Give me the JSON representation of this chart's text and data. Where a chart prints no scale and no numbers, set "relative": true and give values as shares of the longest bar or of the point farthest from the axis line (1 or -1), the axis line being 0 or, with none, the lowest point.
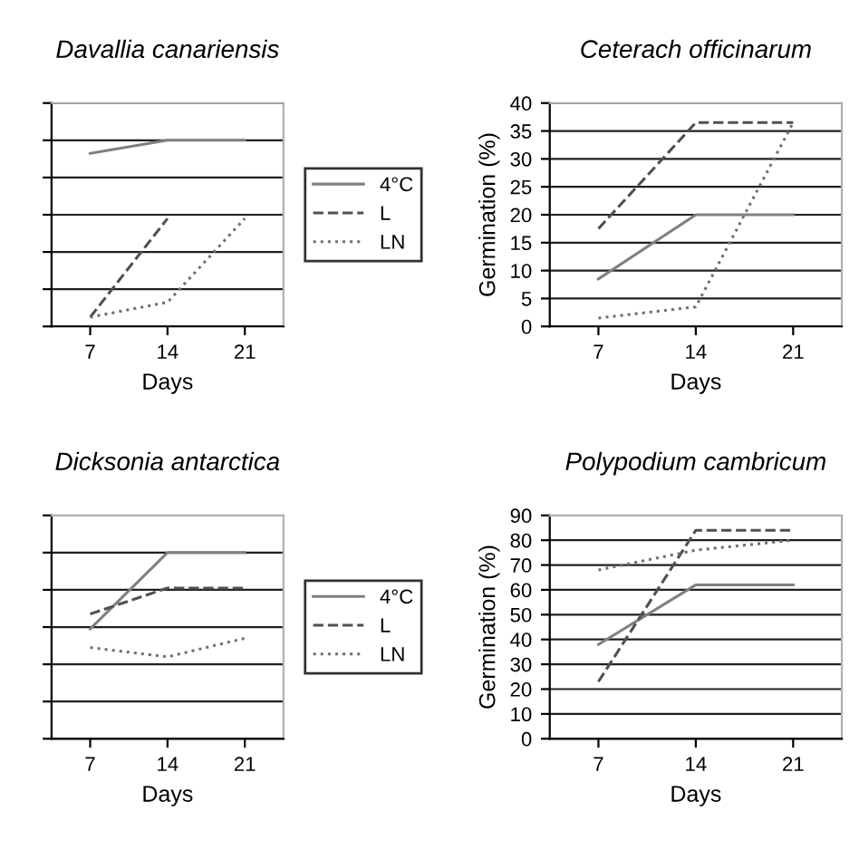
{
  "chart_data": [
    {
      "type": "line",
      "title": "Davallia canariensis",
      "xlabel": "Days",
      "categories": [
        "7",
        "14",
        "21"
      ],
      "relative": true,
      "tick_labels": "x",
      "grid": "y",
      "legend": "right",
      "marker": "none",
      "series": [
        {
          "name": "4°C",
          "color": "#808080",
          "line_style": "solid",
          "values": [
            0.93,
            1,
            1
          ]
        },
        {
          "name": "L",
          "color": "#505050",
          "line_style": "dashed",
          "values": [
            0.05,
            0.58,
            null
          ]
        },
        {
          "name": "LN",
          "color": "#707070",
          "line_style": "dotted",
          "values": [
            0.05,
            0.13,
            0.58
          ]
        }
      ]
    },
    {
      "type": "line",
      "title": "Ceterach officinarum",
      "xlabel": "Days",
      "ylabel": "Germination (%)",
      "categories": [
        "7",
        "14",
        "21"
      ],
      "ylim": [
        0,
        40
      ],
      "yticks": [
        0,
        5,
        10,
        15,
        20,
        25,
        30,
        35,
        40
      ],
      "grid": "y",
      "marker": "none",
      "series": [
        {
          "color": "#808080",
          "line_style": "solid",
          "values": [
            8.5,
            20,
            20
          ]
        },
        {
          "color": "#505050",
          "line_style": "dashed",
          "values": [
            17.5,
            36.5,
            36.5
          ]
        },
        {
          "color": "#707070",
          "line_style": "dotted",
          "values": [
            1.5,
            3.5,
            36.5
          ]
        }
      ]
    },
    {
      "type": "line",
      "title": "Dicksonia antarctica",
      "xlabel": "Days",
      "categories": [
        "7",
        "14",
        "21"
      ],
      "relative": true,
      "tick_labels": "x",
      "grid": "y",
      "legend": "right",
      "marker": "none",
      "series": [
        {
          "name": "4°C",
          "color": "#808080",
          "line_style": "solid",
          "values": [
            0.59,
            1,
            1
          ]
        },
        {
          "name": "L",
          "color": "#505050",
          "line_style": "dashed",
          "values": [
            0.67,
            0.81,
            0.81
          ]
        },
        {
          "name": "LN",
          "color": "#707070",
          "line_style": "dotted",
          "values": [
            0.49,
            0.44,
            0.54
          ]
        }
      ]
    },
    {
      "type": "line",
      "title": "Polypodium cambricum",
      "xlabel": "Days",
      "ylabel": "Germination (%)",
      "categories": [
        "7",
        "14",
        "21"
      ],
      "ylim": [
        0,
        90
      ],
      "yticks": [
        0,
        10,
        20,
        30,
        40,
        50,
        60,
        70,
        80,
        90
      ],
      "grid": "y",
      "marker": "none",
      "series": [
        {
          "color": "#808080",
          "line_style": "solid",
          "values": [
            38,
            62,
            62
          ]
        },
        {
          "color": "#505050",
          "line_style": "dashed",
          "values": [
            23,
            84,
            84
          ]
        },
        {
          "color": "#707070",
          "line_style": "dotted",
          "values": [
            68,
            76,
            80
          ]
        }
      ]
    }
  ]
}
